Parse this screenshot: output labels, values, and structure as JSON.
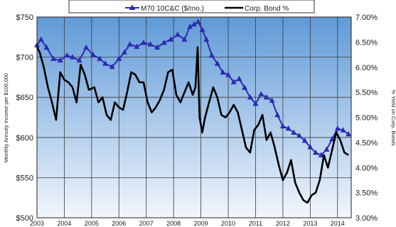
{
  "chart_data": {
    "type": "line",
    "title": "",
    "x_start": "2003",
    "x_end": "2014.5",
    "x_ticks": [
      "2003",
      "2004",
      "2005",
      "2006",
      "2007",
      "2008",
      "2009",
      "2010",
      "2011",
      "2012",
      "2013",
      "2014"
    ],
    "left_axis": {
      "label": "Monthly Annuity Income per $100,000",
      "ylim": [
        500,
        750
      ],
      "ticks": [
        "$500",
        "$550",
        "$600",
        "$650",
        "$700",
        "$750"
      ]
    },
    "right_axis": {
      "label": "% Yield on Corp. Bonds",
      "ylim": [
        3.0,
        7.0
      ],
      "ticks": [
        "3.00%",
        "3.50%",
        "4.00%",
        "4.50%",
        "5.00%",
        "5.50%",
        "6.00%",
        "6.50%",
        "7.00%"
      ]
    },
    "grid": true,
    "legend_position": "top",
    "series": [
      {
        "name": "M70 10C&C ($/mo.)",
        "axis": "left",
        "color": "#2b2bb0",
        "marker": "triangle",
        "x": [
          2003.0,
          2003.15,
          2003.35,
          2003.6,
          2003.85,
          2004.1,
          2004.3,
          2004.55,
          2004.8,
          2005.05,
          2005.3,
          2005.5,
          2005.75,
          2006.0,
          2006.2,
          2006.4,
          2006.65,
          2006.9,
          2007.15,
          2007.4,
          2007.65,
          2007.9,
          2008.15,
          2008.4,
          2008.6,
          2008.75,
          2008.9,
          2009.05,
          2009.2,
          2009.4,
          2009.6,
          2009.8,
          2010.0,
          2010.2,
          2010.4,
          2010.6,
          2010.8,
          2011.0,
          2011.2,
          2011.4,
          2011.6,
          2011.8,
          2012.0,
          2012.2,
          2012.4,
          2012.6,
          2012.8,
          2013.0,
          2013.2,
          2013.4,
          2013.6,
          2013.8,
          2014.0,
          2014.2,
          2014.4
        ],
        "values": [
          715,
          722,
          712,
          698,
          696,
          702,
          700,
          696,
          712,
          703,
          698,
          692,
          688,
          698,
          706,
          716,
          713,
          718,
          716,
          712,
          718,
          722,
          728,
          722,
          738,
          741,
          744,
          734,
          722,
          702,
          692,
          681,
          678,
          669,
          673,
          662,
          650,
          642,
          654,
          650,
          646,
          628,
          614,
          611,
          606,
          602,
          596,
          588,
          581,
          578,
          585,
          598,
          611,
          609,
          604
        ]
      },
      {
        "name": "Corp. Bond %",
        "axis": "right",
        "color": "#000000",
        "x": [
          2003.0,
          2003.1,
          2003.25,
          2003.4,
          2003.55,
          2003.7,
          2003.85,
          2004.0,
          2004.15,
          2004.3,
          2004.45,
          2004.6,
          2004.75,
          2004.9,
          2005.1,
          2005.25,
          2005.4,
          2005.55,
          2005.7,
          2005.85,
          2006.0,
          2006.15,
          2006.3,
          2006.45,
          2006.6,
          2006.75,
          2006.9,
          2007.05,
          2007.2,
          2007.35,
          2007.5,
          2007.65,
          2007.8,
          2007.95,
          2008.1,
          2008.25,
          2008.4,
          2008.55,
          2008.7,
          2008.8,
          2008.88,
          2008.95,
          2009.05,
          2009.15,
          2009.3,
          2009.45,
          2009.6,
          2009.75,
          2009.9,
          2010.05,
          2010.2,
          2010.35,
          2010.5,
          2010.65,
          2010.8,
          2010.95,
          2011.1,
          2011.25,
          2011.4,
          2011.55,
          2011.7,
          2011.85,
          2012.0,
          2012.15,
          2012.3,
          2012.45,
          2012.6,
          2012.75,
          2012.9,
          2013.05,
          2013.2,
          2013.35,
          2013.5,
          2013.65,
          2013.8,
          2013.95,
          2014.1,
          2014.25,
          2014.4
        ],
        "values": [
          6.4,
          6.3,
          6.0,
          5.6,
          5.3,
          4.95,
          5.9,
          5.75,
          5.7,
          5.6,
          5.3,
          6.05,
          5.85,
          5.55,
          5.6,
          5.3,
          5.4,
          5.05,
          4.95,
          5.3,
          5.2,
          5.15,
          5.5,
          5.9,
          5.85,
          5.7,
          5.7,
          5.3,
          5.1,
          5.2,
          5.35,
          5.55,
          5.9,
          5.95,
          5.45,
          5.3,
          5.5,
          5.7,
          5.45,
          5.6,
          6.4,
          5.0,
          4.7,
          5.0,
          5.3,
          5.6,
          5.4,
          5.05,
          5.0,
          5.1,
          5.25,
          5.1,
          4.75,
          4.4,
          4.3,
          4.75,
          4.85,
          5.05,
          4.55,
          4.7,
          4.4,
          4.05,
          3.75,
          3.9,
          4.15,
          3.7,
          3.5,
          3.35,
          3.3,
          3.45,
          3.5,
          3.75,
          4.25,
          4.0,
          4.35,
          4.7,
          4.55,
          4.3,
          4.25
        ]
      }
    ]
  }
}
